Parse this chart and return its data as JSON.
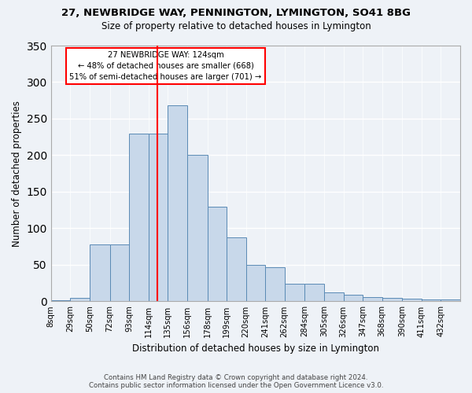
{
  "title1": "27, NEWBRIDGE WAY, PENNINGTON, LYMINGTON, SO41 8BG",
  "title2": "Size of property relative to detached houses in Lymington",
  "xlabel": "Distribution of detached houses by size in Lymington",
  "ylabel": "Number of detached properties",
  "categories": [
    "8sqm",
    "29sqm",
    "50sqm",
    "72sqm",
    "93sqm",
    "114sqm",
    "135sqm",
    "156sqm",
    "178sqm",
    "199sqm",
    "220sqm",
    "241sqm",
    "262sqm",
    "284sqm",
    "305sqm",
    "326sqm",
    "347sqm",
    "368sqm",
    "390sqm",
    "411sqm",
    "432sqm"
  ],
  "cat_vals": [
    8,
    29,
    50,
    72,
    93,
    114,
    135,
    156,
    178,
    199,
    220,
    241,
    262,
    284,
    305,
    326,
    347,
    368,
    390,
    411,
    432
  ],
  "bar_heights": [
    2,
    5,
    78,
    78,
    230,
    230,
    268,
    201,
    130,
    88,
    50,
    47,
    24,
    24,
    12,
    9,
    6,
    5,
    4,
    3,
    3
  ],
  "bar_color": "#c8d8ea",
  "bar_edge_color": "#5a8ab5",
  "redline_x": 124,
  "annotation_text": "27 NEWBRIDGE WAY: 124sqm\n← 48% of detached houses are smaller (668)\n51% of semi-detached houses are larger (701) →",
  "annotation_box_color": "white",
  "annotation_box_edge": "red",
  "ylim": [
    0,
    350
  ],
  "background_color": "#eef2f7",
  "grid_color": "white",
  "footer": "Contains HM Land Registry data © Crown copyright and database right 2024.\nContains public sector information licensed under the Open Government Licence v3.0."
}
